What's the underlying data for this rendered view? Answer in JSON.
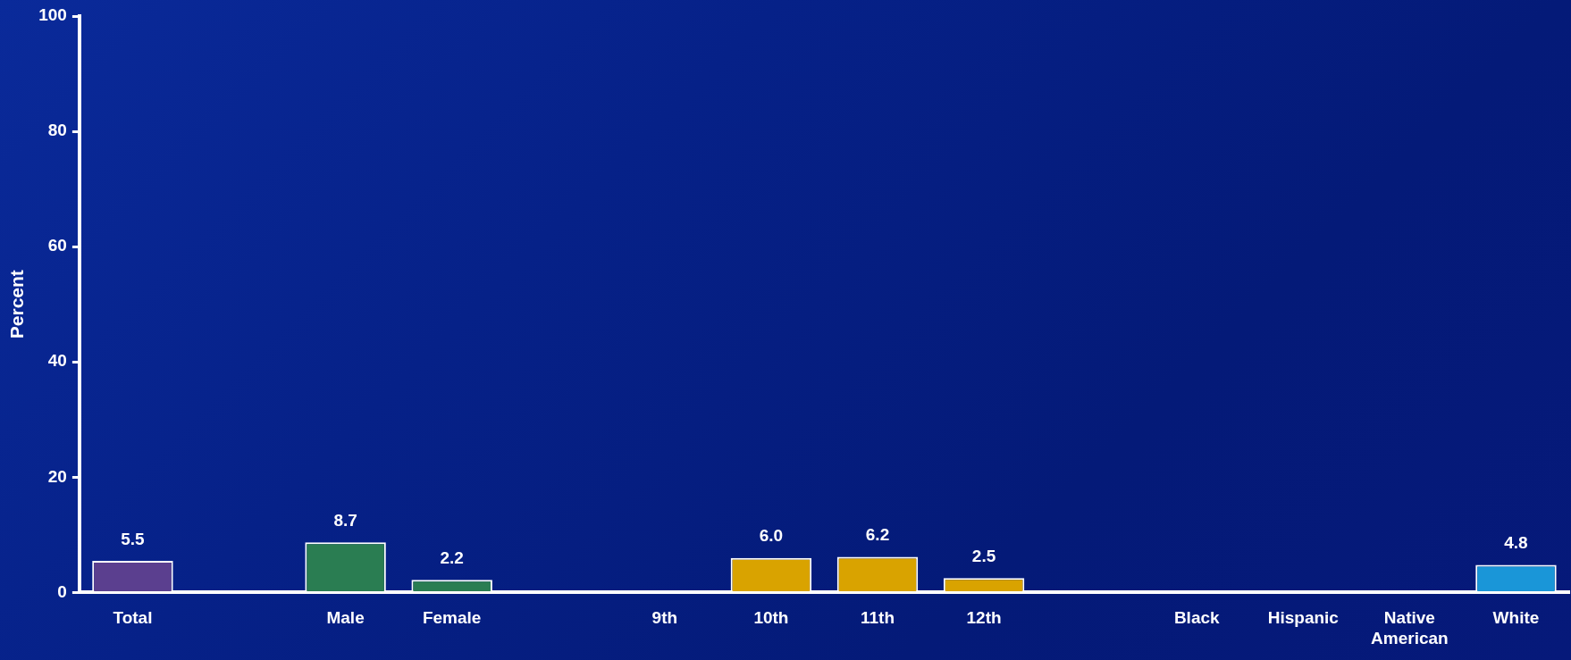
{
  "chart_data": {
    "type": "bar",
    "ylabel": "Percent",
    "categories": [
      "Total",
      null,
      "Male",
      "Female",
      null,
      "9th",
      "10th",
      "11th",
      "12th",
      null,
      "Black",
      "Hispanic",
      "Native American",
      "White"
    ],
    "values": [
      5.5,
      null,
      8.7,
      2.2,
      null,
      null,
      6.0,
      6.2,
      2.5,
      null,
      null,
      null,
      null,
      4.8
    ],
    "value_labels": [
      "5.5",
      null,
      "8.7",
      "2.2",
      null,
      null,
      "6.0",
      "6.2",
      "2.5",
      null,
      null,
      null,
      null,
      "4.8"
    ],
    "colors": [
      "#5b3f8f",
      null,
      "#2a7d52",
      "#2a7d52",
      null,
      "#d9a300",
      "#d9a300",
      "#d9a300",
      "#d9a300",
      null,
      "#1a96d8",
      "#1a96d8",
      "#1a96d8",
      "#1a96d8"
    ],
    "ylim": [
      0,
      100
    ],
    "yticks": [
      0,
      20,
      40,
      60,
      80,
      100
    ],
    "grid": false,
    "legend": false
  }
}
